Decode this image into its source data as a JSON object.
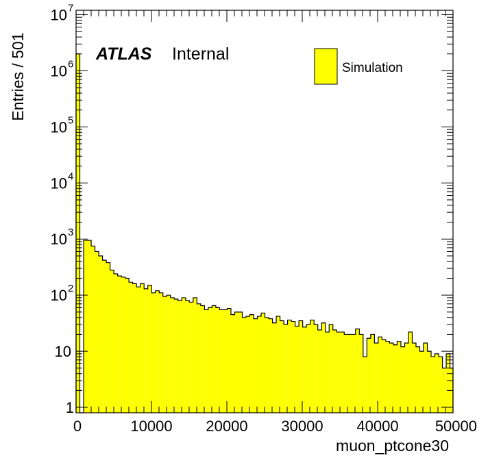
{
  "chart_data": {
    "type": "bar",
    "style": "filled-histogram",
    "xlabel": "muon_ptcone30",
    "ylabel": "Entries / 501",
    "xlim": [
      0,
      50000
    ],
    "ylim": [
      0.8,
      12000000
    ],
    "yscale": "log",
    "bin_width": 501,
    "fill_color": "#ffff00",
    "line_color": "#000000",
    "x_ticks": [
      0,
      10000,
      20000,
      30000,
      40000,
      50000
    ],
    "x_tick_labels": [
      "0",
      "10000",
      "20000",
      "30000",
      "40000",
      "50000"
    ],
    "y_tick_labels": [
      {
        "value": 1,
        "base": "1",
        "exp": ""
      },
      {
        "value": 10,
        "base": "10",
        "exp": ""
      },
      {
        "value": 100,
        "base": "10",
        "exp": "2"
      },
      {
        "value": 1000,
        "base": "10",
        "exp": "3"
      },
      {
        "value": 10000,
        "base": "10",
        "exp": "4"
      },
      {
        "value": 100000,
        "base": "10",
        "exp": "5"
      },
      {
        "value": 1000000,
        "base": "10",
        "exp": "6"
      },
      {
        "value": 10000000,
        "base": "10",
        "exp": "7"
      }
    ],
    "annotation": {
      "bold": "ATLAS",
      "normal": "Internal"
    },
    "legend": {
      "position": "top-right",
      "entries": [
        {
          "label": "Simulation",
          "color": "#ffff00"
        }
      ]
    },
    "series": [
      {
        "name": "Simulation",
        "x_start": [
          0,
          501,
          1002,
          1503,
          2004,
          2505,
          3006,
          3507,
          4008,
          4509,
          5010,
          5511,
          6012,
          6513,
          7014,
          7515,
          8016,
          8517,
          9018,
          9519,
          10020,
          10521,
          11022,
          11523,
          12024,
          12525,
          13026,
          13527,
          14028,
          14529,
          15030,
          15531,
          16032,
          16533,
          17034,
          17535,
          18036,
          18537,
          19038,
          19539,
          20040,
          20541,
          21042,
          21543,
          22044,
          22545,
          23046,
          23547,
          24048,
          24549,
          25050,
          25551,
          26052,
          26553,
          27054,
          27555,
          28056,
          28557,
          29058,
          29559,
          30060,
          30561,
          31062,
          31563,
          32064,
          32565,
          33066,
          33567,
          34068,
          34569,
          35070,
          35571,
          36072,
          36573,
          37074,
          37575,
          38076,
          38577,
          39078,
          39579,
          40080,
          40581,
          41082,
          41583,
          42084,
          42585,
          43086,
          43587,
          44088,
          44589,
          45090,
          45591,
          46092,
          46593,
          47094,
          47595,
          48096,
          48597,
          49098,
          49599
        ],
        "values": [
          2000000,
          0,
          950,
          950,
          750,
          600,
          500,
          420,
          380,
          280,
          240,
          220,
          210,
          200,
          170,
          160,
          140,
          160,
          130,
          150,
          110,
          120,
          110,
          95,
          100,
          90,
          85,
          80,
          90,
          80,
          75,
          90,
          70,
          65,
          55,
          60,
          65,
          60,
          55,
          55,
          58,
          45,
          50,
          50,
          40,
          42,
          45,
          38,
          42,
          48,
          40,
          38,
          32,
          42,
          35,
          30,
          36,
          34,
          28,
          35,
          27,
          30,
          36,
          30,
          24,
          32,
          22,
          30,
          24,
          22,
          22,
          20,
          20,
          20,
          25,
          20,
          8,
          17,
          20,
          14,
          18,
          16,
          15,
          14,
          13,
          15,
          12,
          14,
          22,
          14,
          12,
          10,
          14,
          10,
          8,
          9,
          8,
          5,
          9,
          5
        ]
      }
    ]
  }
}
